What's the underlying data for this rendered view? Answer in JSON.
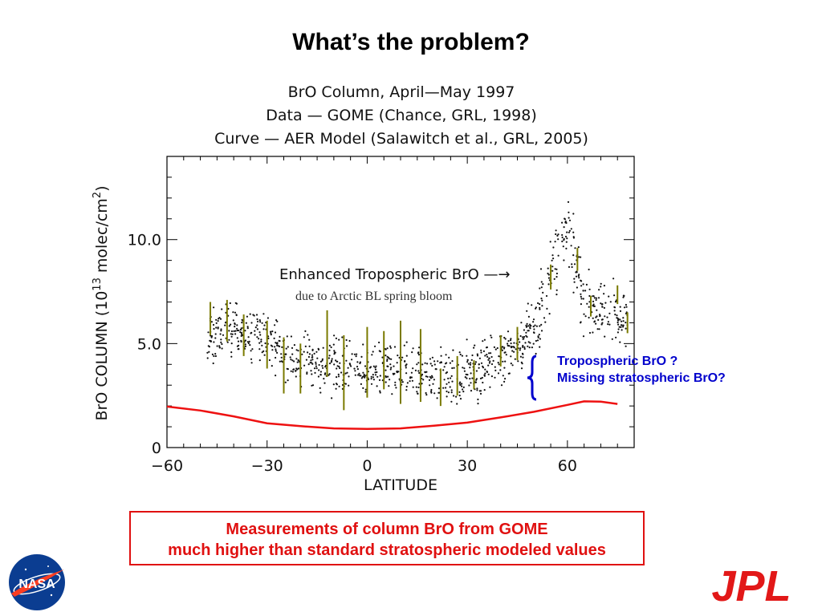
{
  "slide": {
    "title": "What’s the problem?",
    "note_line1": "Tropospheric BrO ?",
    "note_line2": "Missing stratospheric BrO?",
    "conclusion_line1": "Measurements of column BrO from GOME",
    "conclusion_line2": "much higher than standard stratospheric modeled values",
    "logo_left": "NASA",
    "logo_right": "JPL",
    "colors": {
      "accent_red": "#e01010",
      "note_blue": "#0000cc",
      "model_curve": "#ee1111",
      "error_bars": "#7a7a00"
    }
  },
  "chart_data": {
    "type": "scatter",
    "title_lines": [
      "BrO Column, April—May 1997",
      "Data — GOME (Chance, GRL, 1998)",
      "Curve — AER Model (Salawitch et al., GRL, 2005)"
    ],
    "xlabel": "LATITUDE",
    "ylabel_prefix": "BrO COLUMN (10",
    "ylabel_exp": "13",
    "ylabel_mid": " molec/cm",
    "ylabel_exp2": "2",
    "ylabel_suffix": ")",
    "xlim": [
      -60,
      80
    ],
    "ylim": [
      0,
      14
    ],
    "xticks": [
      -60,
      -30,
      0,
      30,
      60
    ],
    "xtick_labels": [
      "−60",
      "−30",
      "0",
      "30",
      "60"
    ],
    "yticks": [
      0,
      5,
      10
    ],
    "ytick_labels": [
      "0",
      "5.0",
      "10.0"
    ],
    "annotation_main": "Enhanced Tropospheric BrO —→",
    "annotation_sub": "due to Arctic BL spring bloom",
    "data_mean_profile": [
      [
        -48,
        5.2
      ],
      [
        -42,
        5.8
      ],
      [
        -36,
        5.7
      ],
      [
        -30,
        5.2
      ],
      [
        -24,
        4.5
      ],
      [
        -18,
        4.1
      ],
      [
        -12,
        4.0
      ],
      [
        -6,
        3.9
      ],
      [
        0,
        3.8
      ],
      [
        6,
        3.7
      ],
      [
        12,
        3.7
      ],
      [
        18,
        3.6
      ],
      [
        24,
        3.4
      ],
      [
        30,
        3.5
      ],
      [
        36,
        3.9
      ],
      [
        42,
        4.4
      ],
      [
        48,
        5.3
      ],
      [
        52,
        6.5
      ],
      [
        56,
        8.8
      ],
      [
        60,
        10.6
      ],
      [
        63,
        8.6
      ],
      [
        66,
        7.0
      ],
      [
        70,
        6.4
      ],
      [
        74,
        6.4
      ],
      [
        78,
        6.2
      ]
    ],
    "error_bars": [
      {
        "x": -47,
        "y": 6.8,
        "lo": 5.4,
        "hi": 7.0
      },
      {
        "x": -42,
        "y": 6.2,
        "lo": 5.1,
        "hi": 7.1
      },
      {
        "x": -37,
        "y": 5.6,
        "lo": 4.4,
        "hi": 6.4
      },
      {
        "x": -30,
        "y": 5.2,
        "lo": 3.8,
        "hi": 6.1
      },
      {
        "x": -25,
        "y": 4.4,
        "lo": 2.6,
        "hi": 5.3
      },
      {
        "x": -20,
        "y": 4.0,
        "lo": 2.6,
        "hi": 5.0
      },
      {
        "x": -12,
        "y": 4.4,
        "lo": 3.4,
        "hi": 6.6
      },
      {
        "x": -7,
        "y": 3.8,
        "lo": 1.8,
        "hi": 5.4
      },
      {
        "x": 0,
        "y": 4.0,
        "lo": 2.4,
        "hi": 5.8
      },
      {
        "x": 5,
        "y": 4.2,
        "lo": 2.8,
        "hi": 5.6
      },
      {
        "x": 10,
        "y": 4.0,
        "lo": 2.1,
        "hi": 6.1
      },
      {
        "x": 16,
        "y": 4.2,
        "lo": 2.2,
        "hi": 5.7
      },
      {
        "x": 22,
        "y": 3.2,
        "lo": 2.0,
        "hi": 3.8
      },
      {
        "x": 27,
        "y": 3.7,
        "lo": 2.5,
        "hi": 4.4
      },
      {
        "x": 32,
        "y": 3.6,
        "lo": 2.8,
        "hi": 4.2
      },
      {
        "x": 40,
        "y": 4.4,
        "lo": 3.9,
        "hi": 5.4
      },
      {
        "x": 45,
        "y": 4.6,
        "lo": 4.2,
        "hi": 5.8
      },
      {
        "x": 55,
        "y": 8.3,
        "lo": 7.6,
        "hi": 8.8
      },
      {
        "x": 63,
        "y": 9.2,
        "lo": 8.5,
        "hi": 9.6
      },
      {
        "x": 67,
        "y": 7.0,
        "lo": 6.3,
        "hi": 7.3
      },
      {
        "x": 75,
        "y": 7.4,
        "lo": 6.9,
        "hi": 7.8
      },
      {
        "x": 78,
        "y": 6.0,
        "lo": 5.5,
        "hi": 6.5
      }
    ],
    "model_curve": [
      [
        -60,
        1.97
      ],
      [
        -50,
        1.78
      ],
      [
        -40,
        1.5
      ],
      [
        -30,
        1.17
      ],
      [
        -20,
        1.03
      ],
      [
        -10,
        0.92
      ],
      [
        0,
        0.9
      ],
      [
        10,
        0.92
      ],
      [
        20,
        1.05
      ],
      [
        30,
        1.2
      ],
      [
        40,
        1.45
      ],
      [
        50,
        1.72
      ],
      [
        60,
        2.05
      ],
      [
        65,
        2.22
      ],
      [
        70,
        2.21
      ],
      [
        75,
        2.1
      ]
    ]
  }
}
